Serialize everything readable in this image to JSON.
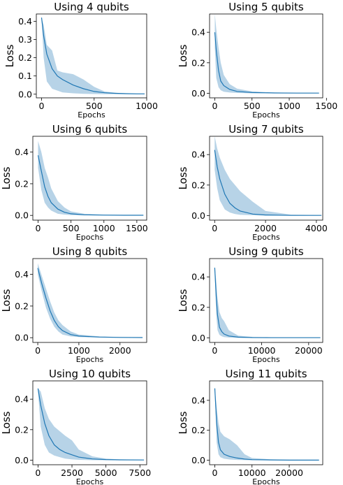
{
  "colors": {
    "line": "#1f77b4",
    "band": "#1f77b4",
    "axes": "#000000"
  },
  "chart_data": [
    {
      "type": "line",
      "title": "Using 4 qubits",
      "xlabel": "Epochs",
      "ylabel": "Loss",
      "xlim": [
        -50,
        1000
      ],
      "ylim": [
        -0.02,
        0.44
      ],
      "xticks": [
        0,
        500,
        1000
      ],
      "yticks": [
        0.0,
        0.1,
        0.2,
        0.3,
        0.4
      ],
      "ytick_labels": [
        "0.0",
        "0.1",
        "0.2",
        "0.3",
        "0.4"
      ],
      "series": [
        {
          "x": [
            0,
            20,
            50,
            100,
            150,
            200,
            300,
            400,
            500,
            600,
            700,
            800,
            900,
            980
          ],
          "y": [
            0.42,
            0.32,
            0.22,
            0.14,
            0.1,
            0.08,
            0.05,
            0.03,
            0.015,
            0.008,
            0.005,
            0.003,
            0.002,
            0.002
          ]
        }
      ],
      "band": {
        "x": [
          0,
          20,
          50,
          100,
          150,
          200,
          300,
          400,
          500,
          600,
          700,
          800,
          900,
          980
        ],
        "upper": [
          0.42,
          0.38,
          0.27,
          0.24,
          0.13,
          0.12,
          0.11,
          0.08,
          0.04,
          0.015,
          0.008,
          0.005,
          0.004,
          0.003
        ],
        "lower": [
          0.42,
          0.2,
          0.07,
          0.03,
          0.02,
          0.01,
          0.005,
          0.002,
          0.001,
          0.0,
          0.0,
          0.0,
          0.0,
          0.0
        ]
      }
    },
    {
      "type": "line",
      "title": "Using 5 qubits",
      "xlabel": "Epochs",
      "ylabel": "Loss",
      "xlim": [
        -70,
        1450
      ],
      "ylim": [
        -0.03,
        0.52
      ],
      "xticks": [
        0,
        500,
        1000,
        1500
      ],
      "yticks": [
        0.0,
        0.2,
        0.4
      ],
      "ytick_labels": [
        "0.0",
        "0.2",
        "0.4"
      ],
      "series": [
        {
          "x": [
            0,
            20,
            50,
            80,
            120,
            200,
            300,
            500,
            800,
            1100,
            1400
          ],
          "y": [
            0.4,
            0.28,
            0.15,
            0.08,
            0.05,
            0.025,
            0.012,
            0.005,
            0.002,
            0.001,
            0.001
          ]
        }
      ],
      "band": {
        "x": [
          0,
          20,
          50,
          80,
          120,
          200,
          300,
          500,
          800,
          1100,
          1400
        ],
        "upper": [
          0.52,
          0.42,
          0.3,
          0.2,
          0.12,
          0.06,
          0.03,
          0.012,
          0.005,
          0.003,
          0.002
        ],
        "lower": [
          0.3,
          0.1,
          0.04,
          0.02,
          0.01,
          0.005,
          0.002,
          0.0,
          0.0,
          0.0,
          0.0
        ]
      }
    },
    {
      "type": "line",
      "title": "Using 6 qubits",
      "xlabel": "Epochs",
      "ylabel": "Loss",
      "xlim": [
        -80,
        1650
      ],
      "ylim": [
        -0.03,
        0.5
      ],
      "xticks": [
        0,
        500,
        1000,
        1500
      ],
      "yticks": [
        0.0,
        0.2,
        0.4
      ],
      "ytick_labels": [
        "0.0",
        "0.2",
        "0.4"
      ],
      "series": [
        {
          "x": [
            0,
            50,
            100,
            150,
            200,
            300,
            400,
            500,
            700,
            1000,
            1300,
            1600
          ],
          "y": [
            0.38,
            0.28,
            0.18,
            0.12,
            0.08,
            0.04,
            0.02,
            0.01,
            0.004,
            0.002,
            0.001,
            0.001
          ]
        }
      ],
      "band": {
        "x": [
          0,
          50,
          100,
          150,
          200,
          300,
          400,
          500,
          700,
          1000,
          1300,
          1600
        ],
        "upper": [
          0.47,
          0.4,
          0.3,
          0.24,
          0.17,
          0.09,
          0.05,
          0.025,
          0.01,
          0.005,
          0.003,
          0.002
        ],
        "lower": [
          0.3,
          0.16,
          0.08,
          0.05,
          0.03,
          0.01,
          0.005,
          0.002,
          0.0,
          0.0,
          0.0,
          0.0
        ]
      }
    },
    {
      "type": "line",
      "title": "Using 7 qubits",
      "xlabel": "Epochs",
      "ylabel": "Loss",
      "xlim": [
        -200,
        4250
      ],
      "ylim": [
        -0.03,
        0.52
      ],
      "xticks": [
        0,
        2000,
        4000
      ],
      "yticks": [
        0.0,
        0.2,
        0.4
      ],
      "ytick_labels": [
        "0.0",
        "0.2",
        "0.4"
      ],
      "series": [
        {
          "x": [
            0,
            100,
            200,
            400,
            600,
            800,
            1000,
            1500,
            2000,
            3000,
            4200
          ],
          "y": [
            0.43,
            0.32,
            0.24,
            0.14,
            0.08,
            0.05,
            0.03,
            0.01,
            0.004,
            0.001,
            0.001
          ]
        }
      ],
      "band": {
        "x": [
          0,
          100,
          200,
          400,
          600,
          800,
          1000,
          1500,
          2000,
          3000,
          4200
        ],
        "upper": [
          0.52,
          0.44,
          0.38,
          0.3,
          0.24,
          0.2,
          0.16,
          0.09,
          0.03,
          0.006,
          0.003
        ],
        "lower": [
          0.3,
          0.18,
          0.1,
          0.04,
          0.02,
          0.01,
          0.005,
          0.002,
          0.0,
          0.0,
          0.0
        ]
      }
    },
    {
      "type": "line",
      "title": "Using 8 qubits",
      "xlabel": "Epochs",
      "ylabel": "Loss",
      "xlim": [
        -120,
        2650
      ],
      "ylim": [
        -0.03,
        0.5
      ],
      "xticks": [
        0,
        1000,
        2000
      ],
      "yticks": [
        0.0,
        0.2,
        0.4
      ],
      "ytick_labels": [
        "0.0",
        "0.2",
        "0.4"
      ],
      "series": [
        {
          "x": [
            0,
            100,
            200,
            300,
            400,
            500,
            600,
            800,
            1000,
            1500,
            2000,
            2550
          ],
          "y": [
            0.44,
            0.34,
            0.25,
            0.17,
            0.11,
            0.07,
            0.045,
            0.02,
            0.01,
            0.004,
            0.002,
            0.001
          ]
        }
      ],
      "band": {
        "x": [
          0,
          100,
          200,
          300,
          400,
          500,
          600,
          800,
          1000,
          1500,
          2000,
          2550
        ],
        "upper": [
          0.47,
          0.39,
          0.31,
          0.23,
          0.16,
          0.11,
          0.08,
          0.04,
          0.02,
          0.008,
          0.004,
          0.002
        ],
        "lower": [
          0.4,
          0.29,
          0.19,
          0.12,
          0.07,
          0.04,
          0.02,
          0.008,
          0.004,
          0.001,
          0.0,
          0.0
        ]
      }
    },
    {
      "type": "line",
      "title": "Using 9 qubits",
      "xlabel": "Epochs",
      "ylabel": "Loss",
      "xlim": [
        -1100,
        23000
      ],
      "ylim": [
        -0.03,
        0.52
      ],
      "xticks": [
        0,
        10000,
        20000
      ],
      "yticks": [
        0.0,
        0.2,
        0.4
      ],
      "ytick_labels": [
        "0.0",
        "0.2",
        "0.4"
      ],
      "series": [
        {
          "x": [
            0,
            300,
            600,
            1000,
            1500,
            2000,
            3000,
            5000,
            8000,
            12000,
            17000,
            22500
          ],
          "y": [
            0.46,
            0.28,
            0.15,
            0.07,
            0.04,
            0.025,
            0.012,
            0.005,
            0.002,
            0.001,
            0.001,
            0.001
          ]
        }
      ],
      "band": {
        "x": [
          0,
          300,
          600,
          1000,
          1500,
          2000,
          3000,
          5000,
          8000,
          12000,
          17000,
          22500
        ],
        "upper": [
          0.47,
          0.38,
          0.26,
          0.17,
          0.13,
          0.11,
          0.05,
          0.015,
          0.006,
          0.003,
          0.002,
          0.002
        ],
        "lower": [
          0.44,
          0.16,
          0.05,
          0.02,
          0.01,
          0.005,
          0.002,
          0.0,
          0.0,
          0.0,
          0.0,
          0.0
        ]
      }
    },
    {
      "type": "line",
      "title": "Using 10 qubits",
      "xlabel": "Epochs",
      "ylabel": "Loss",
      "xlim": [
        -380,
        8000
      ],
      "ylim": [
        -0.03,
        0.52
      ],
      "xticks": [
        0,
        2500,
        5000,
        7500
      ],
      "yticks": [
        0.0,
        0.2,
        0.4
      ],
      "ytick_labels": [
        "0.0",
        "0.2",
        "0.4"
      ],
      "series": [
        {
          "x": [
            0,
            200,
            500,
            800,
            1200,
            1600,
            2000,
            2500,
            3000,
            4000,
            5000,
            6000,
            7800
          ],
          "y": [
            0.47,
            0.36,
            0.24,
            0.16,
            0.1,
            0.07,
            0.05,
            0.035,
            0.02,
            0.008,
            0.004,
            0.002,
            0.001
          ]
        }
      ],
      "band": {
        "x": [
          0,
          200,
          500,
          800,
          1200,
          1600,
          2000,
          2500,
          3000,
          4000,
          5000,
          6000,
          7800
        ],
        "upper": [
          0.47,
          0.45,
          0.34,
          0.27,
          0.22,
          0.19,
          0.16,
          0.13,
          0.07,
          0.025,
          0.01,
          0.005,
          0.003
        ],
        "lower": [
          0.45,
          0.22,
          0.1,
          0.05,
          0.03,
          0.02,
          0.01,
          0.005,
          0.002,
          0.0,
          0.0,
          0.0,
          0.0
        ]
      }
    },
    {
      "type": "line",
      "title": "Using 11 qubits",
      "xlabel": "Epochs",
      "ylabel": "Loss",
      "xlim": [
        -1400,
        29000
      ],
      "ylim": [
        -0.03,
        0.53
      ],
      "xticks": [
        0,
        10000,
        20000
      ],
      "yticks": [
        0.0,
        0.2,
        0.4
      ],
      "ytick_labels": [
        "0.0",
        "0.2",
        "0.4"
      ],
      "series": [
        {
          "x": [
            0,
            500,
            1000,
            1500,
            2500,
            4000,
            6000,
            8000,
            10000,
            15000,
            20000,
            28000
          ],
          "y": [
            0.48,
            0.25,
            0.12,
            0.07,
            0.04,
            0.025,
            0.015,
            0.008,
            0.004,
            0.002,
            0.001,
            0.001
          ]
        }
      ],
      "band": {
        "x": [
          0,
          500,
          1000,
          1500,
          2500,
          4000,
          6000,
          8000,
          10000,
          15000,
          20000,
          28000
        ],
        "upper": [
          0.48,
          0.36,
          0.25,
          0.19,
          0.16,
          0.14,
          0.1,
          0.04,
          0.015,
          0.006,
          0.003,
          0.002
        ],
        "lower": [
          0.47,
          0.12,
          0.04,
          0.02,
          0.01,
          0.005,
          0.002,
          0.001,
          0.0,
          0.0,
          0.0,
          0.0
        ]
      }
    }
  ]
}
